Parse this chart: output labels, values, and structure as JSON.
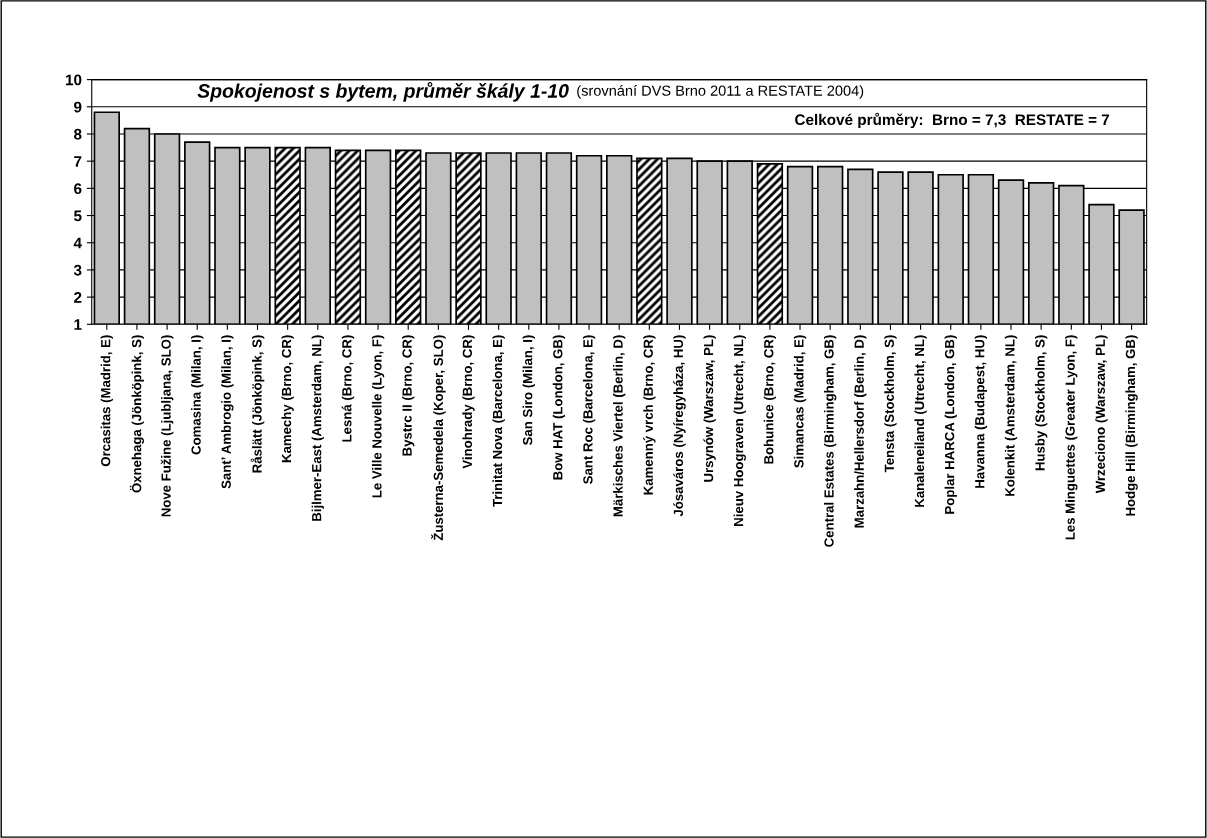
{
  "chart_data": {
    "type": "bar",
    "title": "Spokojenost s bytem, průměr škály 1-10",
    "subtitle": "(srovnání DVS Brno 2011 a RESTATE 2004)",
    "annotations": [
      "Celkové průměry:  Brno = 7,3  RESTATE = 7"
    ],
    "categories": [
      "Orcasitas (Madrid, E)",
      "Öxnehaga (Jönköpink, S)",
      "Nove Fužine (Ljubljana, SLO)",
      "Comasina (Milan, I)",
      "Sant’ Ambrogio (Milan, I)",
      "Råslätt (Jönköpink, S)",
      "Kamechy (Brno, CR)",
      "Bijlmer-East (Amsterdam, NL)",
      "Lesná (Brno, CR)",
      "Le Ville Nouvelle (Lyon, F)",
      "Bystrc II (Brno, CR)",
      "Žusterna-Semedela (Koper, SLO)",
      "Vinohrady (Brno, CR)",
      "Trinitat Nova (Barcelona, E)",
      "San Siro (Milan, I)",
      "Bow HAT (London, GB)",
      "Sant Roc (Barcelona, E)",
      "Märkisches Viertel (Berlin, D)",
      "Kamenný vrch (Brno, CR)",
      "Jósaváros (Nyíregyháza, HU)",
      "Ursynów (Warszaw, PL)",
      "Nieuv Hoograven (Utrecht, NL)",
      "Bohunice (Brno, CR)",
      "Simancas (Madrid, E)",
      "Central Estates (Birmingham, GB)",
      "Marzahn/Hellersdorf (Berlin, D)",
      "Tensta (Stockholm, S)",
      "Kanaleneiland (Utrecht, NL)",
      "Poplar HARCA (London, GB)",
      "Havanna (Budapest, HU)",
      "Kolenkit (Amsterdam, NL)",
      "Husby (Stockholm, S)",
      "Les Minguettes (Greater Lyon, F)",
      "Wrzeciono (Warszaw, PL)",
      "Hodge Hill (Birmingham, GB)"
    ],
    "series": [
      {
        "color": "#c0c0c0",
        "values": [
          8.8,
          8.2,
          8.0,
          7.7,
          7.5,
          7.5,
          null,
          7.5,
          null,
          7.4,
          null,
          7.3,
          null,
          7.3,
          7.3,
          7.3,
          7.2,
          7.2,
          null,
          7.1,
          7.0,
          7.0,
          null,
          6.8,
          6.8,
          6.7,
          6.6,
          6.6,
          6.5,
          6.5,
          6.3,
          6.2,
          6.1,
          5.4,
          5.2
        ]
      },
      {
        "color": "#000000",
        "values": [
          null,
          null,
          null,
          null,
          null,
          null,
          7.5,
          null,
          7.4,
          null,
          7.4,
          null,
          7.3,
          null,
          null,
          null,
          null,
          null,
          7.1,
          null,
          null,
          null,
          6.9,
          null,
          null,
          null,
          null,
          null,
          null,
          null,
          null,
          null,
          null,
          null,
          null
        ]
      }
    ],
    "ylim": [
      1,
      10
    ],
    "yticks": [
      1,
      2,
      3,
      4,
      5,
      6,
      7,
      8,
      9,
      10
    ],
    "grid": "y"
  }
}
